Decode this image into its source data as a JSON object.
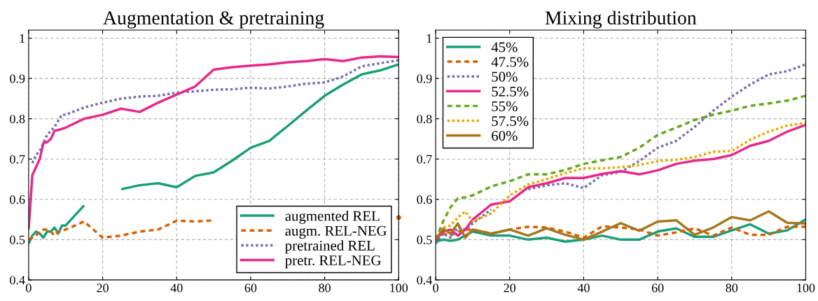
{
  "chart_data": [
    {
      "type": "line",
      "title": "Augmentation & pretraining",
      "xlim": [
        0,
        100
      ],
      "xticks": [
        0,
        20,
        40,
        60,
        80,
        100
      ],
      "ylim": [
        0.4,
        1.02
      ],
      "yticks": [
        {
          "value": 0.4,
          "label": "0.4"
        },
        {
          "value": 0.5,
          "label": "0.5"
        },
        {
          "value": 0.6,
          "label": "0.6"
        },
        {
          "value": 0.7,
          "label": "0.7"
        },
        {
          "value": 0.8,
          "label": "0.8"
        },
        {
          "value": 0.9,
          "label": "0.9"
        },
        {
          "value": 1,
          "label": "1"
        }
      ],
      "grid": true,
      "legend": "bottom right",
      "x": [
        0,
        1,
        2,
        3,
        4,
        5,
        6,
        7,
        8,
        9,
        10,
        15,
        20,
        25,
        30,
        35,
        40,
        45,
        50,
        55,
        60,
        65,
        70,
        75,
        80,
        85,
        90,
        95,
        100
      ],
      "series": [
        {
          "name": "augmented REL",
          "color": "#1b9e77",
          "line_style": "solid",
          "values": [
            0.49,
            0.51,
            0.52,
            0.515,
            0.505,
            0.52,
            0.52,
            0.53,
            0.515,
            0.535,
            0.535,
            0.585,
            null,
            0.625,
            0.635,
            0.64,
            0.63,
            0.658,
            0.667,
            0.696,
            0.728,
            0.745,
            0.782,
            0.82,
            0.857,
            0.885,
            0.91,
            0.92,
            0.935
          ]
        },
        {
          "name": "augm. REL-NEG",
          "color": "#d95f02",
          "line_style": "dashed",
          "values": [
            0.5,
            0.505,
            0.51,
            0.52,
            0.525,
            0.525,
            0.52,
            0.51,
            0.52,
            0.522,
            0.525,
            0.545,
            0.505,
            0.51,
            0.52,
            0.525,
            0.547,
            0.545,
            0.548,
            null,
            null,
            null,
            null,
            null,
            null,
            null,
            null,
            null,
            0.555
          ]
        },
        {
          "name": "pretrained REL",
          "color": "#7570b3",
          "line_style": "dotted",
          "values": [
            null,
            0.69,
            0.71,
            0.72,
            0.74,
            0.76,
            0.77,
            0.78,
            0.795,
            0.81,
            0.81,
            0.828,
            0.84,
            0.85,
            0.855,
            0.857,
            0.865,
            0.868,
            0.872,
            0.873,
            0.877,
            0.875,
            0.88,
            0.887,
            0.89,
            0.905,
            0.93,
            0.938,
            0.945
          ]
        },
        {
          "name": "pretr. REL-NEG",
          "color": "#e7298a",
          "line_style": "solid",
          "values": [
            0.525,
            0.66,
            0.68,
            0.7,
            0.74,
            0.742,
            0.75,
            0.77,
            0.772,
            0.775,
            0.778,
            0.8,
            0.81,
            0.825,
            0.817,
            0.84,
            0.86,
            0.88,
            0.922,
            0.928,
            0.932,
            0.935,
            0.94,
            0.943,
            0.948,
            0.943,
            0.952,
            0.955,
            0.953
          ]
        }
      ]
    },
    {
      "type": "line",
      "title": "Mixing distribution",
      "xlim": [
        0,
        100
      ],
      "xticks": [
        0,
        20,
        40,
        60,
        80,
        100
      ],
      "ylim": [
        0.4,
        1.02
      ],
      "yticks": [
        {
          "value": 0.4,
          "label": "0.4"
        },
        {
          "value": 0.5,
          "label": "0.5"
        },
        {
          "value": 0.6,
          "label": "0.6"
        },
        {
          "value": 0.7,
          "label": "0.7"
        },
        {
          "value": 0.8,
          "label": "0.8"
        },
        {
          "value": 0.9,
          "label": "0.9"
        },
        {
          "value": 1,
          "label": "1"
        }
      ],
      "grid": true,
      "legend": "top left",
      "x": [
        0,
        2,
        4,
        6,
        8,
        10,
        15,
        20,
        25,
        30,
        35,
        40,
        45,
        50,
        55,
        60,
        65,
        70,
        75,
        80,
        85,
        90,
        95,
        100
      ],
      "series": [
        {
          "name": "45%",
          "color": "#1b9e77",
          "line_style": "solid",
          "values": [
            0.495,
            0.5,
            0.497,
            0.5,
            0.51,
            0.52,
            0.51,
            0.51,
            0.5,
            0.505,
            0.495,
            0.5,
            0.51,
            0.5,
            0.5,
            0.52,
            0.528,
            0.507,
            0.507,
            0.523,
            0.538,
            0.515,
            0.523,
            0.55
          ]
        },
        {
          "name": "47.5%",
          "color": "#d95f02",
          "line_style": "dashed",
          "values": [
            0.5,
            0.515,
            0.51,
            0.52,
            0.525,
            0.525,
            0.515,
            0.525,
            0.532,
            0.53,
            0.52,
            0.505,
            0.533,
            0.53,
            0.525,
            0.51,
            0.518,
            0.528,
            0.51,
            0.53,
            0.512,
            0.512,
            0.532,
            0.532
          ]
        },
        {
          "name": "50%",
          "color": "#7570b3",
          "line_style": "dotted",
          "values": [
            0.49,
            0.515,
            0.505,
            0.53,
            0.525,
            0.54,
            0.575,
            null,
            0.625,
            0.635,
            0.64,
            0.628,
            0.66,
            0.668,
            0.695,
            0.728,
            0.745,
            0.78,
            0.82,
            0.855,
            0.885,
            0.91,
            0.918,
            0.935
          ]
        },
        {
          "name": "52.5%",
          "color": "#e7298a",
          "line_style": "solid",
          "values": [
            0.5,
            0.52,
            0.525,
            0.51,
            0.525,
            0.55,
            0.587,
            0.595,
            0.63,
            0.64,
            0.653,
            0.653,
            0.663,
            0.67,
            0.662,
            0.672,
            0.688,
            0.696,
            0.7,
            0.71,
            0.733,
            0.745,
            0.768,
            0.785
          ]
        },
        {
          "name": "55%",
          "color": "#66a61e",
          "line_style": "dashed",
          "values": [
            0.5,
            0.545,
            0.58,
            0.603,
            0.605,
            0.61,
            0.632,
            0.645,
            0.662,
            0.662,
            0.673,
            0.688,
            0.697,
            0.705,
            0.728,
            0.76,
            0.778,
            0.797,
            0.81,
            0.82,
            0.832,
            0.838,
            0.845,
            0.857
          ]
        },
        {
          "name": "57.5%",
          "color": "#e6ab02",
          "line_style": "dotted",
          "values": [
            0.5,
            0.53,
            0.535,
            0.555,
            0.57,
            0.545,
            0.565,
            0.61,
            0.637,
            0.65,
            0.665,
            0.677,
            0.677,
            0.68,
            0.685,
            0.695,
            0.698,
            0.705,
            0.718,
            0.72,
            0.748,
            0.768,
            0.783,
            0.79
          ]
        },
        {
          "name": "60%",
          "color": "#a6761d",
          "line_style": "solid",
          "values": [
            0.5,
            0.527,
            0.515,
            0.54,
            0.505,
            0.525,
            0.515,
            0.525,
            0.51,
            0.528,
            0.512,
            0.5,
            0.52,
            0.541,
            0.522,
            0.545,
            0.548,
            0.512,
            0.53,
            0.556,
            0.548,
            0.57,
            0.542,
            0.54
          ]
        }
      ]
    }
  ]
}
